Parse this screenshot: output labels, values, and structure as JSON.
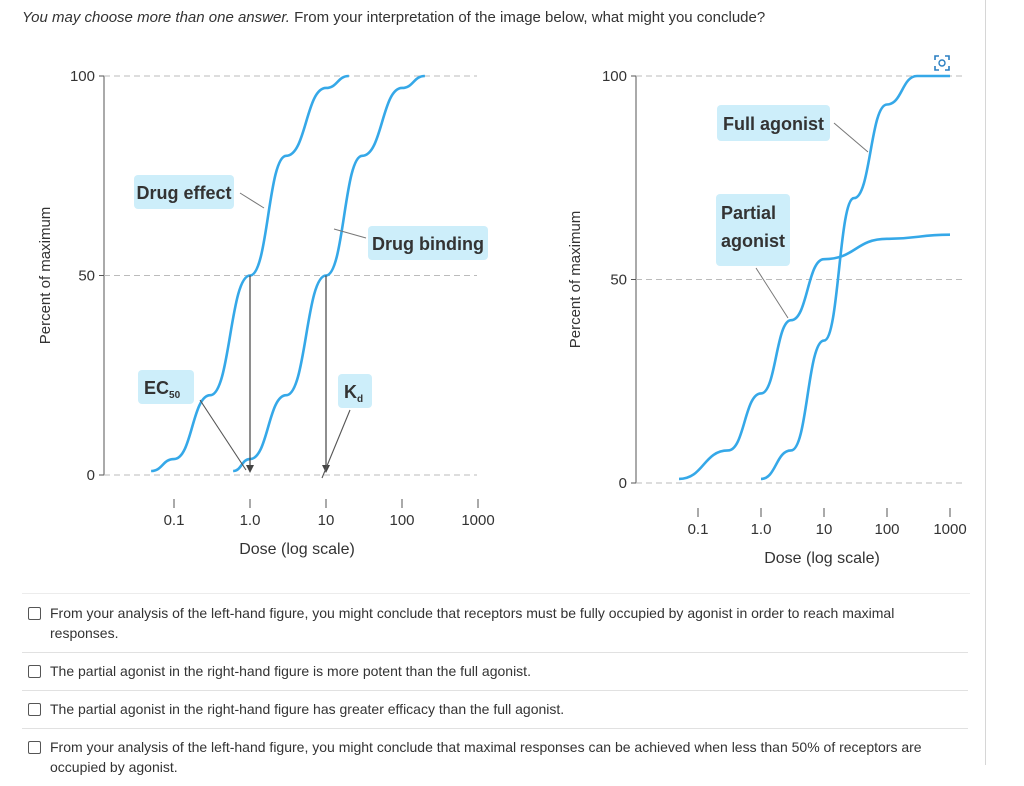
{
  "question": {
    "hint": "You may choose more than one answer.",
    "text": "From your interpretation of the image below, what might you conclude?"
  },
  "figure": {
    "expand_icon": "expand-image-icon",
    "curve_color": "#35a8e8",
    "label_bg": "#cdeefa"
  },
  "chart_data": [
    {
      "type": "line",
      "title": "",
      "xlabel": "Dose (log scale)",
      "ylabel": "Percent of maximum",
      "x_scale": "log",
      "x_ticks": [
        "0.1",
        "1.0",
        "10",
        "100",
        "1000"
      ],
      "y_ticks": [
        "0",
        "50",
        "100"
      ],
      "ylim": [
        0,
        100
      ],
      "grid": "dashed reference lines at 0, 50, 100",
      "series": [
        {
          "name": "Drug effect",
          "x": [
            0.05,
            0.1,
            0.3,
            1.0,
            3,
            10,
            20
          ],
          "y": [
            1,
            4,
            20,
            50,
            80,
            97,
            100
          ]
        },
        {
          "name": "Drug binding",
          "x": [
            0.6,
            1.0,
            3,
            10,
            30,
            100,
            200
          ],
          "y": [
            1,
            4,
            20,
            50,
            80,
            97,
            100
          ]
        }
      ],
      "annotations": {
        "ec50_label": "EC",
        "ec50_sub": "50",
        "kd_label": "K",
        "kd_sub": "d",
        "ec50_x": 1.0,
        "kd_x": 10
      }
    },
    {
      "type": "line",
      "title": "",
      "xlabel": "Dose (log scale)",
      "ylabel": "Percent of maximum",
      "x_scale": "log",
      "x_ticks": [
        "0.1",
        "1.0",
        "10",
        "100",
        "1000"
      ],
      "y_ticks": [
        "0",
        "50",
        "100"
      ],
      "ylim": [
        0,
        100
      ],
      "grid": "dashed reference lines at 0, 50, 100",
      "series": [
        {
          "name": "Full agonist",
          "x": [
            1.0,
            3,
            10,
            30,
            100,
            300,
            1000
          ],
          "y": [
            1,
            8,
            35,
            70,
            93,
            100,
            100
          ]
        },
        {
          "name": "Partial agonist",
          "x": [
            0.05,
            0.3,
            1.0,
            3,
            10,
            100,
            1000
          ],
          "y": [
            1,
            8,
            22,
            40,
            55,
            60,
            61
          ]
        }
      ]
    }
  ],
  "options": [
    {
      "text": "From your analysis of the left-hand figure, you might conclude that receptors must be fully occupied by agonist in order to reach maximal responses."
    },
    {
      "text": "The partial agonist in the right-hand figure is more potent than the full agonist."
    },
    {
      "text": "The partial agonist in the right-hand figure has greater efficacy than the full agonist."
    },
    {
      "text": "From your analysis of the left-hand figure, you might conclude that maximal responses can be achieved when less than 50% of receptors are occupied by agonist."
    }
  ]
}
